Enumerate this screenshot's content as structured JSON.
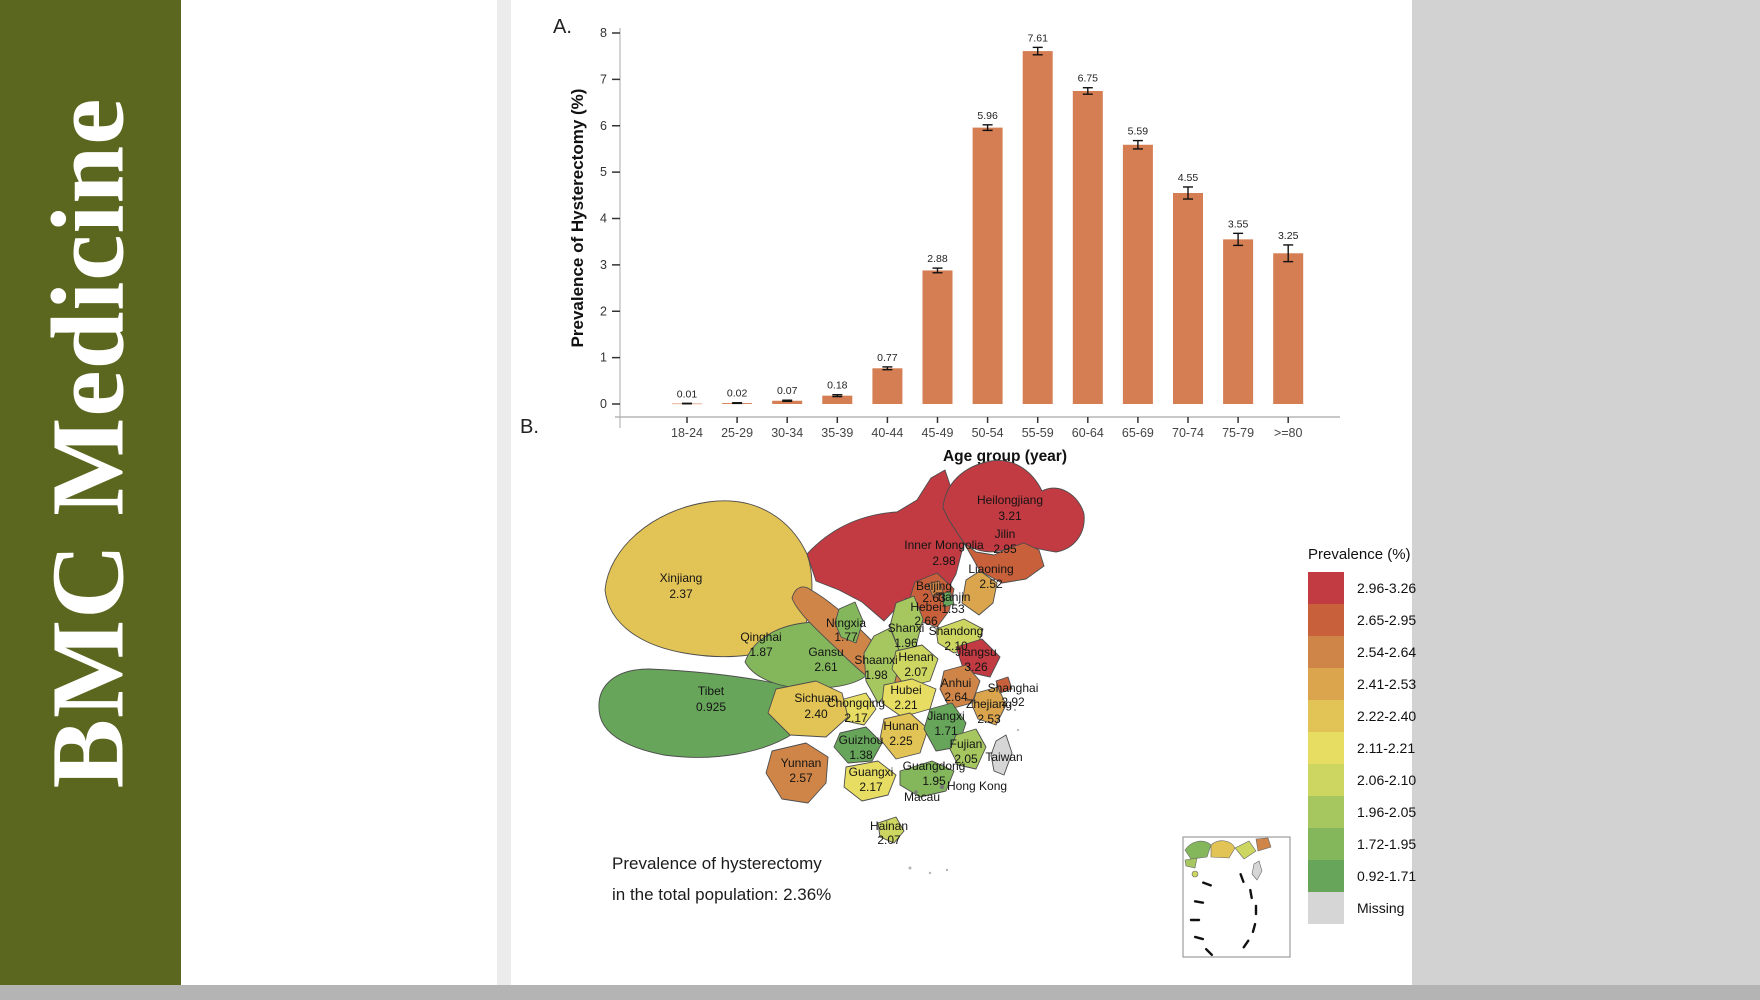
{
  "banner": {
    "journal": "BMC Medicine",
    "bg_color": "#5b661e"
  },
  "figure": {
    "panel_a": "A.",
    "panel_b": "B."
  },
  "chart_data": {
    "type": "bar",
    "title": "",
    "xlabel": "Age group (year)",
    "ylabel": "Prevalence of Hysterectomy (%)",
    "ylim": [
      0,
      8
    ],
    "yticks": [
      0,
      1,
      2,
      3,
      4,
      5,
      6,
      7,
      8
    ],
    "grid": "off",
    "bar_color": "#d57e53",
    "categories": [
      "18-24",
      "25-29",
      "30-34",
      "35-39",
      "40-44",
      "45-49",
      "50-54",
      "55-59",
      "60-64",
      "65-69",
      "70-74",
      "75-79",
      ">=80"
    ],
    "values": [
      0.01,
      0.02,
      0.07,
      0.18,
      0.77,
      2.88,
      5.96,
      7.61,
      6.75,
      5.59,
      4.55,
      3.55,
      3.25
    ],
    "errors": [
      0.005,
      0.007,
      0.012,
      0.02,
      0.03,
      0.05,
      0.06,
      0.08,
      0.07,
      0.09,
      0.13,
      0.13,
      0.18
    ],
    "bar_labels": [
      "0.01",
      "0.02",
      "0.07",
      "0.18",
      "0.77",
      "2.88",
      "5.96",
      "7.61",
      "6.75",
      "5.59",
      "4.55",
      "3.55",
      "3.25"
    ]
  },
  "map": {
    "caption_line1": "Prevalence of hysterectomy",
    "caption_line2": "in the total population: 2.36%",
    "total_prevalence": "2.36%",
    "legend": {
      "title": "Prevalence (%)",
      "entries": [
        {
          "range": "2.96-3.26",
          "color": "#c23a42"
        },
        {
          "range": "2.65-2.95",
          "color": "#c8603c"
        },
        {
          "range": "2.54-2.64",
          "color": "#d08548"
        },
        {
          "range": "2.41-2.53",
          "color": "#daa54d"
        },
        {
          "range": "2.22-2.40",
          "color": "#e2c355"
        },
        {
          "range": "2.11-2.21",
          "color": "#e7dd62"
        },
        {
          "range": "2.06-2.10",
          "color": "#ccd660"
        },
        {
          "range": "1.96-2.05",
          "color": "#a6c75f"
        },
        {
          "range": "1.72-1.95",
          "color": "#84b75c"
        },
        {
          "range": "0.92-1.71",
          "color": "#67a65a"
        },
        {
          "range": "Missing",
          "color": "#d6d6d6"
        }
      ]
    },
    "provinces": [
      {
        "name": "Xinjiang",
        "value": "2.37",
        "color": "#e2c355"
      },
      {
        "name": "Tibet",
        "value": "0.925",
        "color": "#67a65a"
      },
      {
        "name": "Inner Mongolia",
        "value": "2.98",
        "color": "#c23a42"
      },
      {
        "name": "Heilongjiang",
        "value": "3.21",
        "color": "#c23a42"
      },
      {
        "name": "Qinghai",
        "value": "1.87",
        "color": "#84b75c"
      },
      {
        "name": "Gansu",
        "value": "2.61",
        "color": "#d08548"
      },
      {
        "name": "Jilin",
        "value": "2.95",
        "color": "#c8603c"
      },
      {
        "name": "Liaoning",
        "value": "2.52",
        "color": "#daa54d"
      },
      {
        "name": "Hebei",
        "value": "2.66",
        "color": "#c8603c"
      },
      {
        "name": "Shanxi",
        "value": "1.96",
        "color": "#a6c75f"
      },
      {
        "name": "Ningxia",
        "value": "1.77",
        "color": "#84b75c"
      },
      {
        "name": "Shaanxi",
        "value": "1.98",
        "color": "#a6c75f"
      },
      {
        "name": "Shandong",
        "value": "2.10",
        "color": "#ccd660"
      },
      {
        "name": "Henan",
        "value": "2.07",
        "color": "#ccd660"
      },
      {
        "name": "Jiangsu",
        "value": "3.26",
        "color": "#c23a42"
      },
      {
        "name": "Anhui",
        "value": "2.64",
        "color": "#d08548"
      },
      {
        "name": "Hubei",
        "value": "2.21",
        "color": "#e7dd62"
      },
      {
        "name": "Chongqing",
        "value": "2.17",
        "color": "#e7dd62"
      },
      {
        "name": "Sichuan",
        "value": "2.40",
        "color": "#e2c355"
      },
      {
        "name": "Yunnan",
        "value": "2.57",
        "color": "#d08548"
      },
      {
        "name": "Guizhou",
        "value": "1.38",
        "color": "#67a65a"
      },
      {
        "name": "Hunan",
        "value": "2.25",
        "color": "#e2c355"
      },
      {
        "name": "Jiangxi",
        "value": "1.71",
        "color": "#67a65a"
      },
      {
        "name": "Zhejiang",
        "value": "2.53",
        "color": "#daa54d"
      },
      {
        "name": "Fujian",
        "value": "2.05",
        "color": "#a6c75f"
      },
      {
        "name": "Guangxi",
        "value": "2.17",
        "color": "#e7dd62"
      },
      {
        "name": "Guangdong",
        "value": "1.95",
        "color": "#84b75c"
      },
      {
        "name": "Shanghai",
        "value": "2.92",
        "color": "#c8603c"
      },
      {
        "name": "Beijing",
        "value": "2.63",
        "color": "#d08548"
      },
      {
        "name": "Tianjin",
        "value": "1.53",
        "color": "#67a65a"
      },
      {
        "name": "Hainan",
        "value": "2.07",
        "color": "#ccd660"
      },
      {
        "name": "Taiwan",
        "value": "",
        "color": "#d6d6d6"
      }
    ],
    "territories": [
      {
        "name": "Hong Kong"
      },
      {
        "name": "Macau"
      }
    ]
  }
}
